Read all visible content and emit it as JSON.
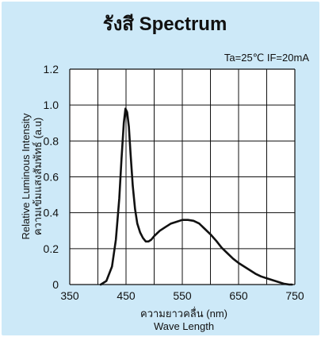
{
  "chart_data": {
    "type": "line",
    "title": "รังสี Spectrum",
    "conditions": "Ta=25℃  IF=20mA",
    "xlabel_th": "ความยาวคลื่น (nm)",
    "xlabel_en": "Wave Length",
    "ylabel_en": "Relative Luminous Intensity",
    "ylabel_th": "ความเข้มแสงสัมพัทธ์ (a.u)",
    "xlim": [
      350,
      750
    ],
    "ylim": [
      0,
      1.2
    ],
    "xticks": [
      "350",
      "450",
      "550",
      "650",
      "750"
    ],
    "yticks": [
      "0",
      "0.2",
      "0.4",
      "0.6",
      "0.8",
      "1.0",
      "1.2"
    ],
    "grid": true,
    "series": [
      {
        "x": [
          405,
          415,
          425,
          432,
          438,
          442,
          446,
          449,
          452,
          455,
          458,
          462,
          466,
          470,
          475,
          480,
          485,
          490,
          495,
          500,
          510,
          520,
          530,
          540,
          550,
          560,
          570,
          580,
          590,
          600,
          610,
          620,
          630,
          640,
          650,
          660,
          670,
          680,
          690,
          700,
          710,
          720,
          730,
          740,
          745
        ],
        "y": [
          0.0,
          0.02,
          0.1,
          0.25,
          0.48,
          0.7,
          0.9,
          0.98,
          0.96,
          0.88,
          0.73,
          0.55,
          0.42,
          0.34,
          0.29,
          0.26,
          0.24,
          0.24,
          0.25,
          0.27,
          0.3,
          0.32,
          0.34,
          0.35,
          0.36,
          0.36,
          0.355,
          0.34,
          0.31,
          0.28,
          0.245,
          0.205,
          0.175,
          0.145,
          0.12,
          0.1,
          0.08,
          0.06,
          0.045,
          0.035,
          0.025,
          0.015,
          0.005,
          0.0,
          0.0
        ]
      }
    ]
  }
}
